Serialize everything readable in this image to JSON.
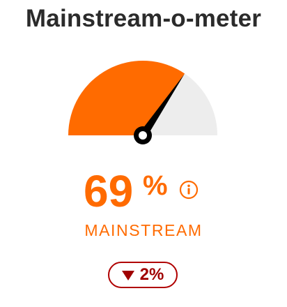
{
  "widget": {
    "title": "Mainstream-o-meter",
    "value": 69,
    "value_text": "69",
    "percent_sign": "%",
    "label": "MAINSTREAM",
    "change": {
      "direction": "down",
      "text": "2%",
      "icon": "triangle-down-icon"
    },
    "info_icon": "info-icon"
  },
  "colors": {
    "accent": "#ff6b00",
    "gauge_track": "#ededed",
    "needle": "#000000",
    "title": "#2b2b2b",
    "change_negative": "#a00000"
  }
}
